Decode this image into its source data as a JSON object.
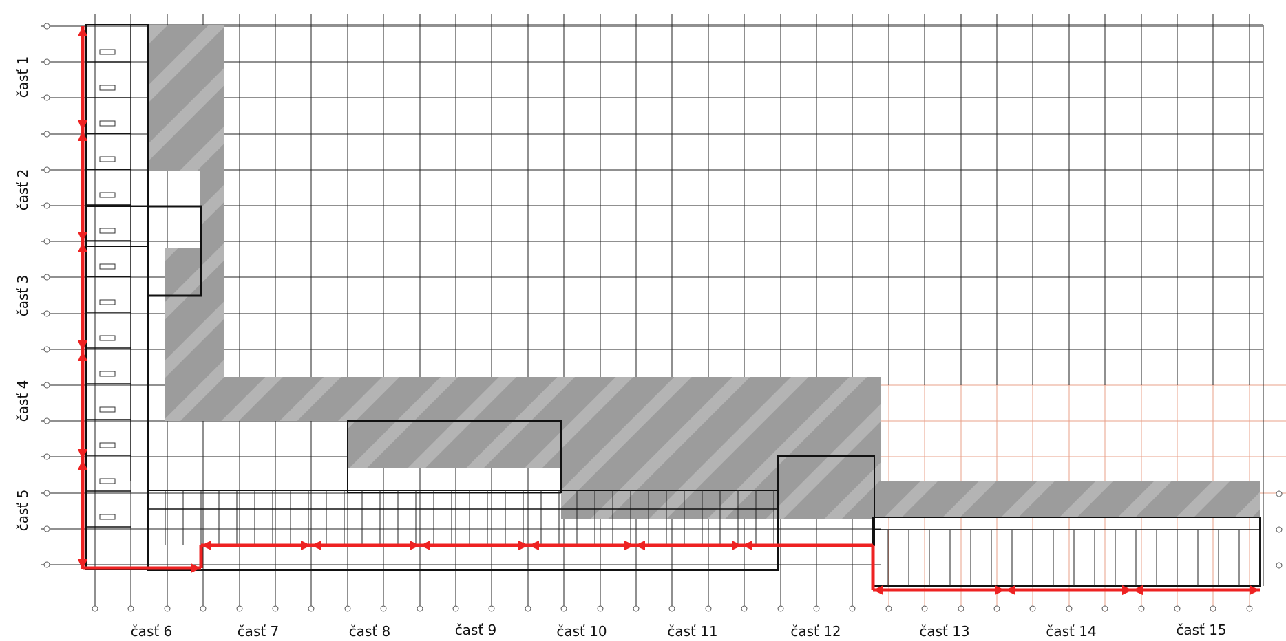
{
  "title": "",
  "colors": {
    "arrow": "#ee2222",
    "grid": "#222222",
    "grid_faint": "#e8a08a",
    "hatch": "#9a9a9a",
    "wall": "#111111",
    "bubble": "#555555"
  },
  "row_labels": [
    "časť 1",
    "časť 2",
    "časť 3",
    "časť 4",
    "časť 5"
  ],
  "column_labels": [
    "časť 6",
    "časť 7",
    "časť 8",
    "časť 9",
    "časť 10",
    "časť 11",
    "časť 12",
    "časť 13",
    "časť 14",
    "časť 15"
  ]
}
